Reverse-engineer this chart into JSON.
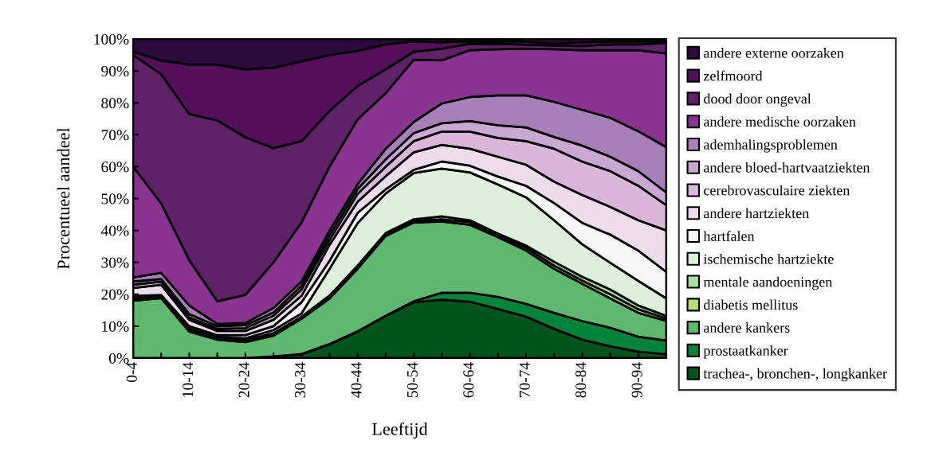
{
  "chart_data": {
    "type": "area",
    "stacked": true,
    "xlabel": "Leeftijd",
    "ylabel": "Procentueel aandeel",
    "categories": [
      "0-4",
      null,
      "10-14",
      null,
      "20-24",
      null,
      "30-34",
      null,
      "40-44",
      null,
      "50-54",
      null,
      "60-64",
      null,
      "70-74",
      null,
      "80-84",
      null,
      "90-94",
      null
    ],
    "ylim": [
      0,
      100
    ],
    "yticks": [
      {
        "value": 0,
        "label": "0%"
      },
      {
        "value": 10,
        "label": "10%"
      },
      {
        "value": 20,
        "label": "20%"
      },
      {
        "value": 30,
        "label": "30%"
      },
      {
        "value": 40,
        "label": "40%"
      },
      {
        "value": 50,
        "label": "50%"
      },
      {
        "value": 60,
        "label": "60%"
      },
      {
        "value": 70,
        "label": "70%"
      },
      {
        "value": 80,
        "label": "80%"
      },
      {
        "value": 90,
        "label": "90%"
      },
      {
        "value": 100,
        "label": "100%"
      }
    ],
    "grid": false,
    "legend": "right",
    "series": [
      {
        "name": "trachea-, bronchen-, longkanker",
        "color": "#00541c",
        "values": [
          0,
          0,
          0,
          0,
          0,
          0.5,
          1.2,
          4.3,
          8.3,
          13.2,
          17.5,
          18.3,
          17.7,
          15.4,
          13,
          9.2,
          5.8,
          3.7,
          2,
          1.2
        ]
      },
      {
        "name": "prostaatkanker",
        "color": "#00843c",
        "values": [
          0,
          0,
          0,
          0,
          0,
          0,
          0.1,
          0.1,
          0.1,
          0.1,
          0.3,
          2.2,
          2.8,
          3.8,
          4,
          5,
          5.8,
          5.8,
          4.7,
          4.3
        ]
      },
      {
        "name": "andere kankers",
        "color": "#5fb86f",
        "values": [
          18,
          18.8,
          8.3,
          5.8,
          5,
          6.5,
          11,
          14.3,
          19.6,
          25,
          24.7,
          22.3,
          21.3,
          18.7,
          16.7,
          13.8,
          11.7,
          9.2,
          7.5,
          6.2
        ]
      },
      {
        "name": "diabetis mellitus",
        "color": "#b5de6f",
        "values": [
          0.2,
          0.2,
          0.3,
          0.2,
          0.3,
          0.3,
          0.2,
          0.4,
          0.4,
          0.4,
          0.5,
          0.7,
          0.8,
          0.6,
          0.9,
          1,
          1,
          1.3,
          1.1,
          0.7
        ]
      },
      {
        "name": "mentale aandoeningen",
        "color": "#a8dda3",
        "values": [
          0.3,
          0.2,
          0.3,
          0.3,
          0.3,
          0.5,
          0.5,
          0.5,
          0.6,
          0.5,
          0.5,
          0.9,
          0.6,
          0.5,
          0.7,
          1.2,
          1.2,
          1.5,
          1.2,
          0.8
        ]
      },
      {
        "name": "ischemische hartziekte",
        "color": "#dcf0da",
        "values": [
          0.5,
          0.2,
          0.3,
          0.3,
          0.6,
          1,
          1,
          8.4,
          13.3,
          12.4,
          14.5,
          15,
          15,
          15.4,
          15.1,
          13,
          10.2,
          8.4,
          7.7,
          5.5
        ]
      },
      {
        "name": "hartfalen",
        "color": "#f7f7f7",
        "values": [
          0.5,
          0.4,
          0.8,
          0.6,
          1,
          1.2,
          3.5,
          2.5,
          3.2,
          1.3,
          1,
          2.2,
          2.1,
          2.5,
          3.6,
          5.4,
          6.7,
          8.8,
          9.5,
          8.3
        ]
      },
      {
        "name": "andere hartziekten",
        "color": "#ecdcec",
        "values": [
          2.5,
          3.2,
          2,
          1.3,
          1.3,
          2,
          2,
          5,
          3.5,
          4.1,
          5.5,
          5.2,
          5.3,
          6.2,
          6.6,
          6.7,
          8.7,
          8.7,
          9.5,
          13
        ]
      },
      {
        "name": "cerebrovasculaire ziekten",
        "color": "#dab6da",
        "values": [
          1,
          1,
          0.8,
          0.7,
          0.9,
          1.3,
          2,
          1.5,
          2.5,
          3,
          3.5,
          4.2,
          5.4,
          5.9,
          7.4,
          10.3,
          10.5,
          11.2,
          10.8,
          7.9
        ]
      },
      {
        "name": "andere bloed-hartvaatziekten",
        "color": "#c9a8d4",
        "values": [
          1,
          0.8,
          1,
          0.8,
          0.9,
          1,
          1.2,
          1.5,
          1.5,
          2.3,
          2.5,
          2.6,
          3.3,
          4,
          4.3,
          3.7,
          5,
          4.5,
          4.6,
          4
        ]
      },
      {
        "name": "ademhalingsproblemen",
        "color": "#a97fba",
        "values": [
          1.3,
          1.9,
          2.7,
          0.7,
          0.7,
          1.4,
          1.3,
          1.5,
          1.5,
          3.3,
          3.5,
          6.2,
          7.5,
          9.3,
          10,
          11,
          11.2,
          12.2,
          12.5,
          14.2
        ]
      },
      {
        "name": "andere medische oorzaken",
        "color": "#8a3390",
        "values": [
          34.7,
          21.8,
          14.2,
          7.1,
          8.8,
          14.3,
          18.5,
          20,
          20.3,
          17.4,
          19.5,
          13.5,
          14.7,
          14.5,
          14.7,
          16.5,
          18.7,
          21.2,
          25.4,
          29.4
        ]
      },
      {
        "name": "dood door ongeval",
        "color": "#5e2167",
        "values": [
          35,
          40.5,
          45.8,
          56.7,
          49.4,
          35.8,
          25.5,
          17.5,
          10.5,
          7.5,
          2.5,
          3.7,
          2,
          1.7,
          1.2,
          1.2,
          1.3,
          1.8,
          1.8,
          3.3
        ]
      },
      {
        "name": "zelfmoord",
        "color": "#540e5a",
        "values": [
          1,
          4.3,
          15.5,
          17.5,
          21.3,
          25.2,
          25,
          17.5,
          11,
          7.8,
          3.3,
          2,
          0.8,
          0.7,
          1,
          0.6,
          1.2,
          0.9,
          0.9,
          0.5
        ]
      },
      {
        "name": "andere externe oorzaken",
        "color": "#2d0a3d",
        "values": [
          4,
          6.7,
          8,
          8,
          9.5,
          9,
          7,
          5,
          3.7,
          1.7,
          0.7,
          1,
          0.7,
          0.8,
          0.8,
          1.4,
          1,
          0.8,
          0.8,
          0.7
        ]
      }
    ]
  }
}
